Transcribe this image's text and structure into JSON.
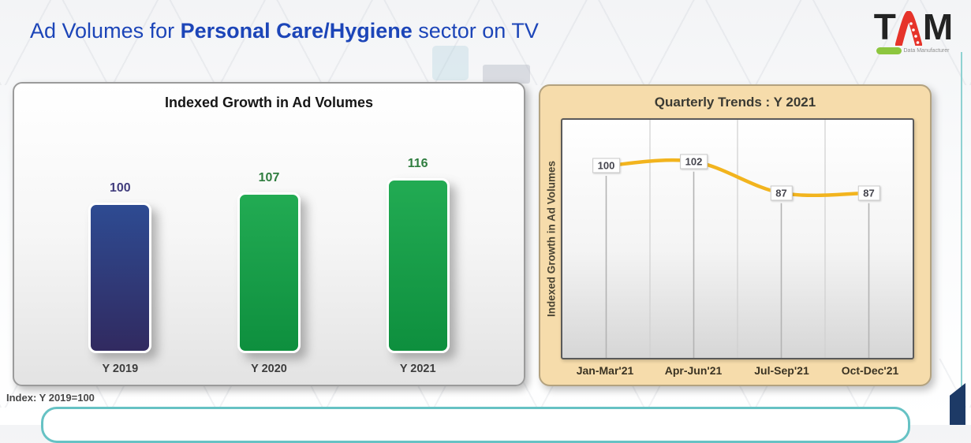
{
  "page": {
    "title": {
      "prefix": "Ad Volumes for ",
      "bold": "Personal Care/Hygiene",
      "suffix": " sector on TV",
      "color": "#1c45b8"
    },
    "note": "Index: Y 2019=100"
  },
  "logo": {
    "text": "TAM",
    "t": "T",
    "m": "M",
    "tagline": "Data Manufacturer",
    "accent_red": "#e6332a",
    "pill_green": "#8dc63f"
  },
  "chart_data": [
    {
      "type": "bar",
      "title": "Indexed Growth in Ad Volumes",
      "categories": [
        "Y 2019",
        "Y 2020",
        "Y 2021"
      ],
      "values": [
        100,
        107,
        116
      ],
      "ylim": [
        0,
        120
      ],
      "grid": false,
      "legend": "none",
      "note": "Index: Y 2019=100",
      "bar_colors": [
        [
          "#2e4b92",
          "#312a60"
        ],
        [
          "#22ab53",
          "#0e8f3e"
        ],
        [
          "#22ab53",
          "#0e8f3e"
        ]
      ],
      "value_label_colors": [
        "#413d7d",
        "#2f7d3f",
        "#2f7d3f"
      ]
    },
    {
      "type": "line",
      "title": "Quarterly Trends : Y 2021",
      "ylabel": "Indexed Growth in Ad Volumes",
      "categories": [
        "Jan-Mar'21",
        "Apr-Jun'21",
        "Jul-Sep'21",
        "Oct-Dec'21"
      ],
      "values": [
        100,
        102,
        87,
        87
      ],
      "ylim": [
        70,
        110
      ],
      "grid": true,
      "legend": "none",
      "line_color": "#f2b41e",
      "panel_color": "#f6dcab"
    }
  ],
  "decor": {
    "teal_frame_color": "#66c2c4",
    "navy_corner_color": "#1d3a66"
  }
}
